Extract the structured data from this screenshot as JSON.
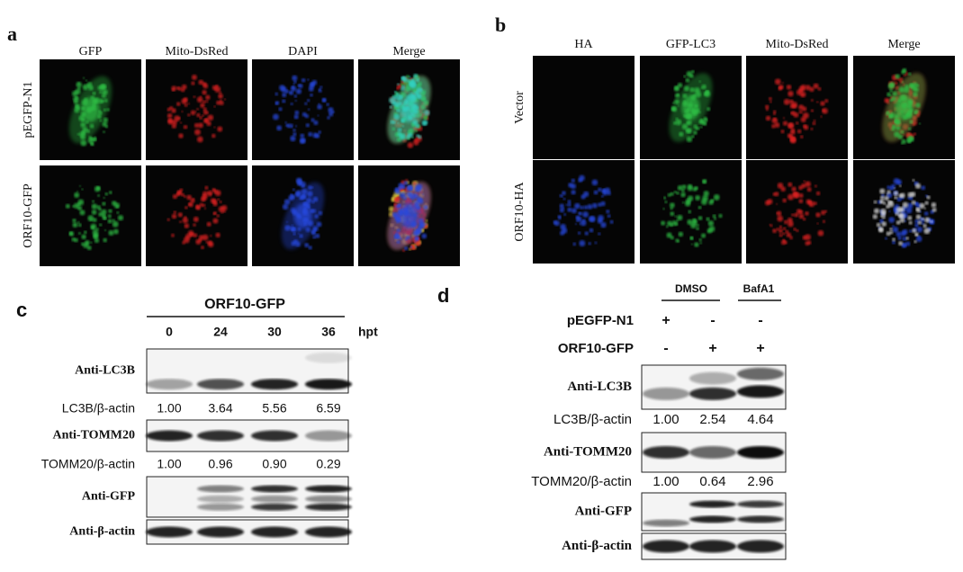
{
  "panel_a": {
    "label": "a",
    "columns": [
      "GFP",
      "Mito-DsRed",
      "DAPI",
      "Merge"
    ],
    "rows": [
      "pEGFP-N1",
      "ORF10-GFP"
    ]
  },
  "panel_b": {
    "label": "b",
    "columns": [
      "HA",
      "GFP-LC3",
      "Mito-DsRed",
      "Merge"
    ],
    "rows": [
      "Vector",
      "ORF10-HA"
    ]
  },
  "panel_c": {
    "label": "c",
    "group_label": "ORF10-GFP",
    "unit": "hpt",
    "lanes": [
      "0",
      "24",
      "30",
      "36"
    ],
    "blots": [
      "Anti-LC3B",
      "Anti-TOMM20",
      "Anti-GFP",
      "Anti-β-actin"
    ],
    "ratios": [
      {
        "label": "LC3B/β-actin",
        "values": [
          "1.00",
          "3.64",
          "5.56",
          "6.59"
        ]
      },
      {
        "label": "TOMM20/β-actin",
        "values": [
          "1.00",
          "0.96",
          "0.90",
          "0.29"
        ]
      }
    ]
  },
  "panel_d": {
    "label": "d",
    "groups": [
      "DMSO",
      "BafA1"
    ],
    "conditions": [
      {
        "label": "pEGFP-N1",
        "signs": [
          "+",
          "-",
          "-"
        ]
      },
      {
        "label": "ORF10-GFP",
        "signs": [
          "-",
          "+",
          "+"
        ]
      }
    ],
    "blots": [
      "Anti-LC3B",
      "Anti-TOMM20",
      "Anti-GFP",
      "Anti-β-actin"
    ],
    "ratios": [
      {
        "label": "LC3B/β-actin",
        "values": [
          "1.00",
          "2.54",
          "4.64"
        ]
      },
      {
        "label": "TOMM20/β-actin",
        "values": [
          "1.00",
          "0.64",
          "2.96"
        ]
      }
    ]
  }
}
